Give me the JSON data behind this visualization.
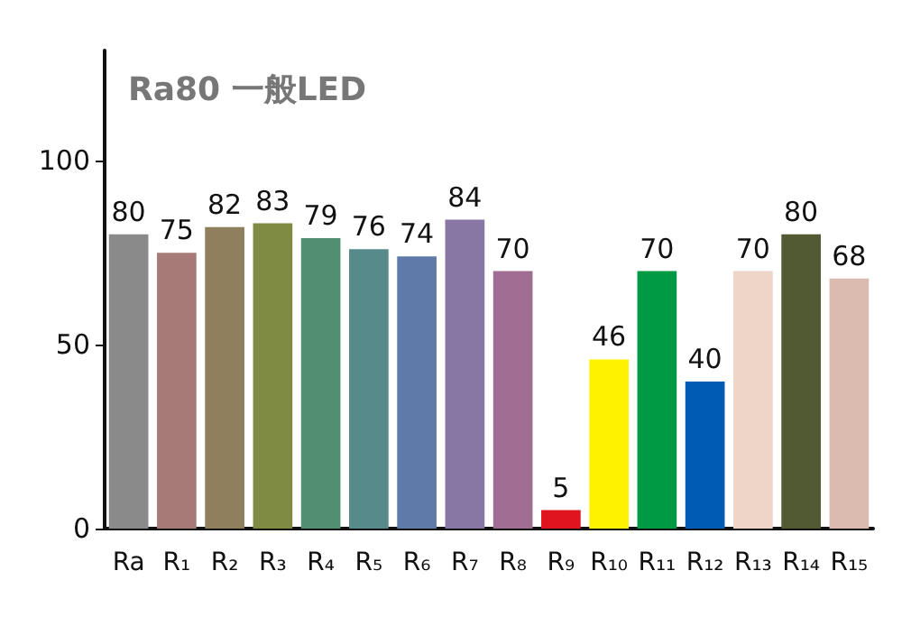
{
  "chart_data": {
    "type": "bar",
    "title": "Ra80 一般LED",
    "categories": [
      "Ra",
      "R₁",
      "R₂",
      "R₃",
      "R₄",
      "R₅",
      "R₆",
      "R₇",
      "R₈",
      "R₉",
      "R₁₀",
      "R₁₁",
      "R₁₂",
      "R₁₃",
      "R₁₄",
      "R₁₅"
    ],
    "values": [
      80,
      75,
      82,
      83,
      79,
      76,
      74,
      84,
      70,
      5,
      46,
      70,
      40,
      70,
      80,
      68
    ],
    "colors": [
      "#8a8a8a",
      "#a57a77",
      "#8f7f5c",
      "#7f8a42",
      "#528f72",
      "#578a8a",
      "#5f7aa8",
      "#8877a5",
      "#a06e92",
      "#e0141e",
      "#fff200",
      "#009a44",
      "#005bb5",
      "#efd5c8",
      "#515a32",
      "#dbbab0"
    ],
    "ylim": [
      0,
      130
    ],
    "yticks": [
      0,
      50,
      100
    ],
    "grid": false,
    "data_labels": true
  }
}
